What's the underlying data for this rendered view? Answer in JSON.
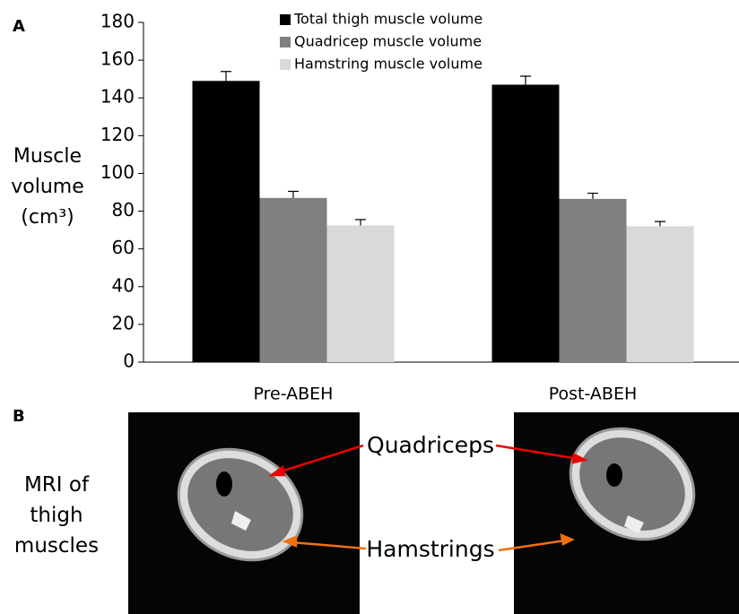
{
  "chart_data": {
    "type": "bar",
    "panel_label": "A",
    "y_label": "Muscle volume (cm³)",
    "categories": [
      "Pre-ABEH",
      "Post-ABEH"
    ],
    "series": [
      {
        "name": "Total thigh muscle volume",
        "color": "#000000",
        "values": [
          149,
          147
        ],
        "errors": [
          5,
          4.5
        ]
      },
      {
        "name": "Quadricep muscle volume",
        "color": "#808080",
        "values": [
          87,
          86.5
        ],
        "errors": [
          3.5,
          3
        ]
      },
      {
        "name": "Hamstring muscle volume",
        "color": "#d9d9d9",
        "values": [
          72.5,
          72
        ],
        "errors": [
          3,
          2.5
        ]
      }
    ],
    "ylim": [
      0,
      180
    ],
    "yticks": [
      0,
      20,
      40,
      60,
      80,
      100,
      120,
      140,
      160,
      180
    ],
    "grid": false
  },
  "panel_b": {
    "panel_label": "B",
    "row_label": "MRI of thigh muscles",
    "quadriceps_label": "Quadriceps",
    "hamstrings_label": "Hamstrings"
  }
}
